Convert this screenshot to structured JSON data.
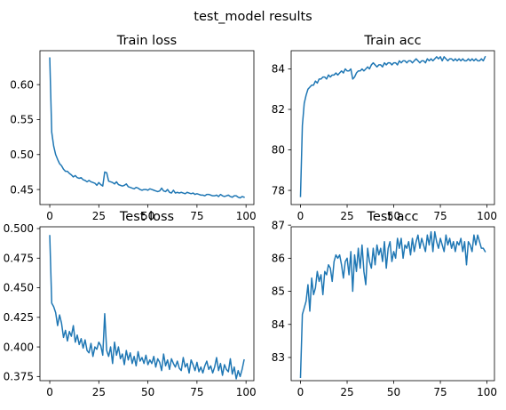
{
  "figure": {
    "suptitle": "test_model results"
  },
  "chart_data": [
    {
      "type": "line",
      "title": "Train loss",
      "xlim": [
        -5,
        104
      ],
      "ylim": [
        0.4285,
        0.6485
      ],
      "xticks": [
        0,
        25,
        50,
        75,
        100
      ],
      "yticks": [
        0.45,
        0.5,
        0.55,
        0.6
      ],
      "ytick_labels": [
        "0.45",
        "0.50",
        "0.55",
        "0.60"
      ],
      "xtick_labels": [
        "0",
        "25",
        "50",
        "75",
        "100"
      ],
      "series": [
        {
          "color": "#1f77b4",
          "x": [
            0,
            1,
            2,
            3,
            4,
            5,
            6,
            7,
            8,
            9,
            10,
            11,
            12,
            13,
            14,
            15,
            16,
            17,
            18,
            19,
            20,
            21,
            22,
            23,
            24,
            25,
            26,
            27,
            28,
            29,
            30,
            31,
            32,
            33,
            34,
            35,
            36,
            37,
            38,
            39,
            40,
            41,
            42,
            43,
            44,
            45,
            46,
            47,
            48,
            49,
            50,
            51,
            52,
            53,
            54,
            55,
            56,
            57,
            58,
            59,
            60,
            61,
            62,
            63,
            64,
            65,
            66,
            67,
            68,
            69,
            70,
            71,
            72,
            73,
            74,
            75,
            76,
            77,
            78,
            79,
            80,
            81,
            82,
            83,
            84,
            85,
            86,
            87,
            88,
            89,
            90,
            91,
            92,
            93,
            94,
            95,
            96,
            97,
            98,
            99
          ],
          "values": [
            0.638,
            0.532,
            0.512,
            0.5,
            0.493,
            0.487,
            0.484,
            0.479,
            0.476,
            0.476,
            0.473,
            0.471,
            0.468,
            0.47,
            0.467,
            0.466,
            0.467,
            0.464,
            0.463,
            0.461,
            0.463,
            0.461,
            0.46,
            0.459,
            0.456,
            0.46,
            0.457,
            0.455,
            0.475,
            0.474,
            0.462,
            0.461,
            0.46,
            0.458,
            0.461,
            0.457,
            0.456,
            0.455,
            0.456,
            0.458,
            0.454,
            0.453,
            0.452,
            0.451,
            0.453,
            0.452,
            0.45,
            0.449,
            0.45,
            0.45,
            0.449,
            0.451,
            0.45,
            0.449,
            0.448,
            0.447,
            0.448,
            0.452,
            0.448,
            0.447,
            0.45,
            0.446,
            0.445,
            0.449,
            0.445,
            0.446,
            0.445,
            0.446,
            0.445,
            0.444,
            0.446,
            0.445,
            0.444,
            0.445,
            0.443,
            0.444,
            0.443,
            0.442,
            0.442,
            0.441,
            0.443,
            0.443,
            0.442,
            0.441,
            0.441,
            0.442,
            0.44,
            0.443,
            0.441,
            0.44,
            0.441,
            0.442,
            0.44,
            0.439,
            0.441,
            0.441,
            0.439,
            0.438,
            0.44,
            0.439
          ]
        }
      ]
    },
    {
      "type": "line",
      "title": "Train acc",
      "xlim": [
        -5,
        104
      ],
      "ylim": [
        77.3,
        84.9
      ],
      "xticks": [
        0,
        25,
        50,
        75,
        100
      ],
      "yticks": [
        78,
        80,
        82,
        84
      ],
      "ytick_labels": [
        "78",
        "80",
        "82",
        "84"
      ],
      "xtick_labels": [
        "0",
        "25",
        "50",
        "75",
        "100"
      ],
      "series": [
        {
          "color": "#1f77b4",
          "x": [
            0,
            1,
            2,
            3,
            4,
            5,
            6,
            7,
            8,
            9,
            10,
            11,
            12,
            13,
            14,
            15,
            16,
            17,
            18,
            19,
            20,
            21,
            22,
            23,
            24,
            25,
            26,
            27,
            28,
            29,
            30,
            31,
            32,
            33,
            34,
            35,
            36,
            37,
            38,
            39,
            40,
            41,
            42,
            43,
            44,
            45,
            46,
            47,
            48,
            49,
            50,
            51,
            52,
            53,
            54,
            55,
            56,
            57,
            58,
            59,
            60,
            61,
            62,
            63,
            64,
            65,
            66,
            67,
            68,
            69,
            70,
            71,
            72,
            73,
            74,
            75,
            76,
            77,
            78,
            79,
            80,
            81,
            82,
            83,
            84,
            85,
            86,
            87,
            88,
            89,
            90,
            91,
            92,
            93,
            94,
            95,
            96,
            97,
            98,
            99
          ],
          "values": [
            77.7,
            81.2,
            82.3,
            82.7,
            83.0,
            83.1,
            83.2,
            83.2,
            83.4,
            83.3,
            83.5,
            83.5,
            83.6,
            83.6,
            83.5,
            83.7,
            83.6,
            83.7,
            83.7,
            83.8,
            83.7,
            83.8,
            83.9,
            83.8,
            84.0,
            83.9,
            83.9,
            84.0,
            83.5,
            83.6,
            83.8,
            83.9,
            83.9,
            84.0,
            83.9,
            84.0,
            84.1,
            84.0,
            84.2,
            84.3,
            84.2,
            84.1,
            84.2,
            84.2,
            84.1,
            84.3,
            84.2,
            84.3,
            84.3,
            84.2,
            84.3,
            84.3,
            84.2,
            84.4,
            84.3,
            84.4,
            84.4,
            84.3,
            84.4,
            84.4,
            84.3,
            84.4,
            84.5,
            84.4,
            84.3,
            84.4,
            84.4,
            84.3,
            84.5,
            84.4,
            84.5,
            84.4,
            84.5,
            84.6,
            84.5,
            84.6,
            84.4,
            84.6,
            84.5,
            84.4,
            84.5,
            84.5,
            84.4,
            84.5,
            84.4,
            84.5,
            84.4,
            84.5,
            84.4,
            84.4,
            84.5,
            84.4,
            84.5,
            84.4,
            84.5,
            84.4,
            84.4,
            84.5,
            84.4,
            84.6
          ]
        }
      ]
    },
    {
      "type": "line",
      "title": "Test loss",
      "xlim": [
        -5,
        104
      ],
      "ylim": [
        0.3715,
        0.5015
      ],
      "xticks": [
        0,
        25,
        50,
        75,
        100
      ],
      "yticks": [
        0.375,
        0.4,
        0.425,
        0.45,
        0.475,
        0.5
      ],
      "ytick_labels": [
        "0.375",
        "0.400",
        "0.425",
        "0.450",
        "0.475",
        "0.500"
      ],
      "xtick_labels": [
        "0",
        "25",
        "50",
        "75",
        "100"
      ],
      "series": [
        {
          "color": "#1f77b4",
          "x": [
            0,
            1,
            2,
            3,
            4,
            5,
            6,
            7,
            8,
            9,
            10,
            11,
            12,
            13,
            14,
            15,
            16,
            17,
            18,
            19,
            20,
            21,
            22,
            23,
            24,
            25,
            26,
            27,
            28,
            29,
            30,
            31,
            32,
            33,
            34,
            35,
            36,
            37,
            38,
            39,
            40,
            41,
            42,
            43,
            44,
            45,
            46,
            47,
            48,
            49,
            50,
            51,
            52,
            53,
            54,
            55,
            56,
            57,
            58,
            59,
            60,
            61,
            62,
            63,
            64,
            65,
            66,
            67,
            68,
            69,
            70,
            71,
            72,
            73,
            74,
            75,
            76,
            77,
            78,
            79,
            80,
            81,
            82,
            83,
            84,
            85,
            86,
            87,
            88,
            89,
            90,
            91,
            92,
            93,
            94,
            95,
            96,
            97,
            98,
            99
          ],
          "values": [
            0.494,
            0.437,
            0.434,
            0.429,
            0.418,
            0.427,
            0.42,
            0.408,
            0.414,
            0.405,
            0.413,
            0.409,
            0.418,
            0.404,
            0.41,
            0.402,
            0.407,
            0.399,
            0.406,
            0.397,
            0.395,
            0.403,
            0.392,
            0.4,
            0.398,
            0.404,
            0.401,
            0.393,
            0.428,
            0.397,
            0.392,
            0.4,
            0.386,
            0.404,
            0.393,
            0.4,
            0.39,
            0.394,
            0.385,
            0.397,
            0.389,
            0.395,
            0.386,
            0.392,
            0.384,
            0.396,
            0.388,
            0.391,
            0.386,
            0.393,
            0.385,
            0.389,
            0.386,
            0.392,
            0.383,
            0.39,
            0.387,
            0.38,
            0.394,
            0.384,
            0.389,
            0.381,
            0.39,
            0.386,
            0.383,
            0.388,
            0.382,
            0.38,
            0.391,
            0.383,
            0.386,
            0.378,
            0.389,
            0.385,
            0.38,
            0.387,
            0.379,
            0.383,
            0.378,
            0.384,
            0.388,
            0.381,
            0.384,
            0.378,
            0.383,
            0.391,
            0.38,
            0.386,
            0.376,
            0.385,
            0.381,
            0.379,
            0.39,
            0.377,
            0.383,
            0.373,
            0.38,
            0.375,
            0.381,
            0.389
          ]
        }
      ]
    },
    {
      "type": "line",
      "title": "Test acc",
      "xlim": [
        -5,
        104
      ],
      "ylim": [
        82.3,
        86.95
      ],
      "xticks": [
        0,
        25,
        50,
        75,
        100
      ],
      "yticks": [
        83,
        84,
        85,
        86,
        87
      ],
      "ytick_labels": [
        "83",
        "84",
        "85",
        "86",
        "87"
      ],
      "xtick_labels": [
        "0",
        "25",
        "50",
        "75",
        "100"
      ],
      "series": [
        {
          "color": "#1f77b4",
          "x": [
            0,
            1,
            2,
            3,
            4,
            5,
            6,
            7,
            8,
            9,
            10,
            11,
            12,
            13,
            14,
            15,
            16,
            17,
            18,
            19,
            20,
            21,
            22,
            23,
            24,
            25,
            26,
            27,
            28,
            29,
            30,
            31,
            32,
            33,
            34,
            35,
            36,
            37,
            38,
            39,
            40,
            41,
            42,
            43,
            44,
            45,
            46,
            47,
            48,
            49,
            50,
            51,
            52,
            53,
            54,
            55,
            56,
            57,
            58,
            59,
            60,
            61,
            62,
            63,
            64,
            65,
            66,
            67,
            68,
            69,
            70,
            71,
            72,
            73,
            74,
            75,
            76,
            77,
            78,
            79,
            80,
            81,
            82,
            83,
            84,
            85,
            86,
            87,
            88,
            89,
            90,
            91,
            92,
            93,
            94,
            95,
            96,
            97,
            98,
            99
          ],
          "values": [
            82.4,
            84.3,
            84.5,
            84.7,
            85.2,
            84.4,
            85.4,
            84.9,
            85.1,
            85.6,
            85.3,
            85.5,
            84.9,
            85.6,
            85.5,
            85.8,
            85.7,
            85.3,
            85.9,
            86.1,
            86.0,
            86.1,
            85.8,
            85.4,
            85.9,
            86.0,
            85.5,
            86.2,
            85.0,
            86.1,
            85.6,
            86.3,
            85.7,
            86.4,
            85.6,
            85.2,
            86.3,
            85.9,
            85.7,
            86.3,
            85.8,
            86.4,
            86.1,
            86.3,
            85.9,
            86.5,
            85.7,
            86.3,
            86.5,
            85.9,
            86.2,
            86.0,
            86.6,
            86.3,
            86.6,
            86.0,
            86.4,
            86.3,
            86.5,
            86.1,
            86.6,
            86.2,
            86.5,
            86.7,
            86.3,
            86.6,
            86.4,
            86.2,
            86.7,
            86.4,
            86.8,
            86.2,
            86.8,
            86.5,
            86.3,
            86.6,
            86.4,
            86.2,
            86.7,
            86.4,
            86.6,
            86.3,
            86.5,
            86.2,
            86.5,
            86.4,
            86.6,
            86.2,
            86.5,
            85.8,
            86.5,
            86.4,
            86.2,
            86.7,
            86.4,
            86.7,
            86.5,
            86.3,
            86.3,
            86.2
          ]
        }
      ]
    }
  ]
}
